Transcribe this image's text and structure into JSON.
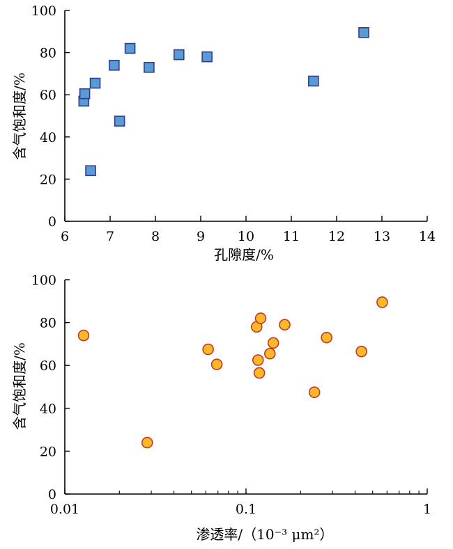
{
  "chart_data": [
    {
      "type": "scatter",
      "xlabel": "孔隙度/%",
      "ylabel": "含气饱和度/%",
      "xlim": [
        6,
        14
      ],
      "ylim": [
        0,
        100
      ],
      "x_scale": "linear",
      "xticks": [
        6,
        7,
        8,
        9,
        10,
        11,
        12,
        13,
        14
      ],
      "xtick_labels": [
        "6",
        "7",
        "8",
        "9",
        "10",
        "11",
        "12",
        "13",
        "14"
      ],
      "yticks": [
        0,
        20,
        40,
        60,
        80,
        100
      ],
      "ytick_labels": [
        "0",
        "20",
        "40",
        "60",
        "80",
        "100"
      ],
      "grid": false,
      "marker": "square",
      "marker_color": "#5B9BD5",
      "marker_edge_color": "#2E3D8F",
      "points": [
        {
          "x": 6.42,
          "y": 57
        },
        {
          "x": 6.44,
          "y": 60.5
        },
        {
          "x": 6.57,
          "y": 24
        },
        {
          "x": 6.67,
          "y": 65.5
        },
        {
          "x": 7.09,
          "y": 74
        },
        {
          "x": 7.21,
          "y": 47.5
        },
        {
          "x": 7.44,
          "y": 82
        },
        {
          "x": 7.86,
          "y": 73
        },
        {
          "x": 8.52,
          "y": 79
        },
        {
          "x": 9.14,
          "y": 78
        },
        {
          "x": 11.49,
          "y": 66.5
        },
        {
          "x": 12.6,
          "y": 89.5
        }
      ]
    },
    {
      "type": "scatter",
      "xlabel": "渗透率/（10⁻³ μm²）",
      "ylabel": "含气饱和度/%",
      "xlim": [
        0.01,
        1
      ],
      "ylim": [
        0,
        100
      ],
      "x_scale": "log",
      "xticks": [
        0.01,
        0.1,
        1
      ],
      "xtick_labels": [
        "0.01",
        "0.1",
        "1"
      ],
      "yticks": [
        0,
        20,
        40,
        60,
        80,
        100
      ],
      "ytick_labels": [
        "0",
        "20",
        "40",
        "60",
        "80",
        "100"
      ],
      "grid": false,
      "marker": "circle",
      "marker_color": "#FBB829",
      "marker_edge_color": "#C0392B",
      "points": [
        {
          "x": 0.0127,
          "y": 74
        },
        {
          "x": 0.0285,
          "y": 24
        },
        {
          "x": 0.0618,
          "y": 67.5
        },
        {
          "x": 0.069,
          "y": 60.5
        },
        {
          "x": 0.1145,
          "y": 78
        },
        {
          "x": 0.1165,
          "y": 62.5
        },
        {
          "x": 0.1185,
          "y": 56.5
        },
        {
          "x": 0.1205,
          "y": 82
        },
        {
          "x": 0.1355,
          "y": 65.5
        },
        {
          "x": 0.1415,
          "y": 70.5
        },
        {
          "x": 0.1635,
          "y": 79
        },
        {
          "x": 0.2385,
          "y": 47.5
        },
        {
          "x": 0.2785,
          "y": 73
        },
        {
          "x": 0.4335,
          "y": 66.5
        },
        {
          "x": 0.5645,
          "y": 89.5
        }
      ]
    }
  ]
}
